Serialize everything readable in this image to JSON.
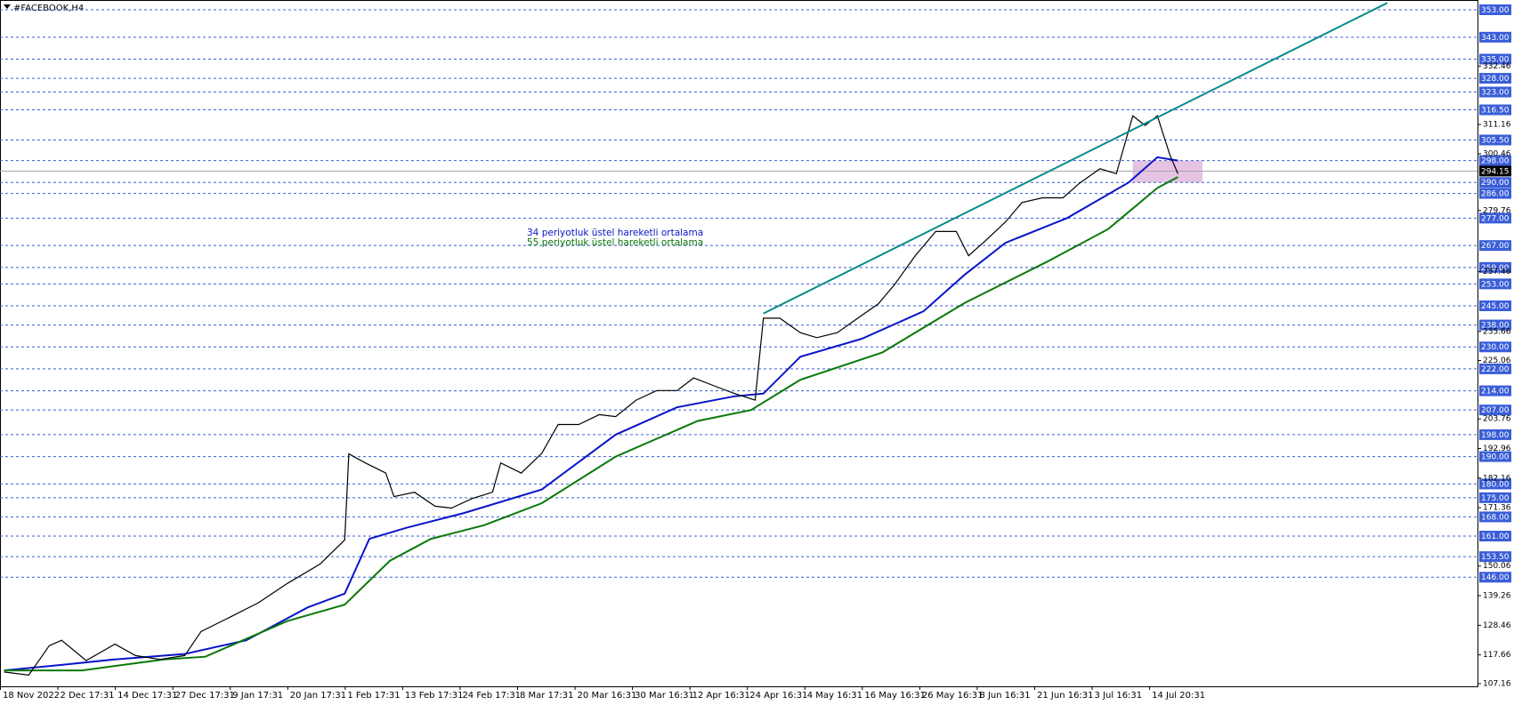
{
  "chart_data": {
    "type": "line",
    "title": "#FACEBOOK,H4",
    "xlim": [
      0,
      360
    ],
    "ylim": [
      107.16,
      353
    ],
    "xticks": [
      {
        "value": 0,
        "label": "18 Nov 2022"
      },
      {
        "value": 14,
        "label": "2 Dec 17:31"
      },
      {
        "value": 28,
        "label": "14 Dec 17:31"
      },
      {
        "value": 42,
        "label": "27 Dec 17:31"
      },
      {
        "value": 56,
        "label": "9 Jan 17:31"
      },
      {
        "value": 70,
        "label": "20 Jan 17:31"
      },
      {
        "value": 84,
        "label": "1 Feb 17:31"
      },
      {
        "value": 98,
        "label": "13 Feb 17:31"
      },
      {
        "value": 112,
        "label": "24 Feb 17:31"
      },
      {
        "value": 126,
        "label": "8 Mar 17:31"
      },
      {
        "value": 140,
        "label": "20 Mar 16:31"
      },
      {
        "value": 154,
        "label": "30 Mar 16:31"
      },
      {
        "value": 168,
        "label": "12 Apr 16:31"
      },
      {
        "value": 182,
        "label": "24 Apr 16:31"
      },
      {
        "value": 196,
        "label": "4 May 16:31"
      },
      {
        "value": 210,
        "label": "16 May 16:31"
      },
      {
        "value": 224,
        "label": "26 May 16:31"
      },
      {
        "value": 238,
        "label": "8 Jun 16:31"
      },
      {
        "value": 252,
        "label": "21 Jun 16:31"
      },
      {
        "value": 266,
        "label": "3 Jul 16:31"
      },
      {
        "value": 280,
        "label": "14 Jul 20:31"
      }
    ],
    "yticks": [
      {
        "value": 332.46,
        "label": "332.46"
      },
      {
        "value": 311.16,
        "label": "311.16"
      },
      {
        "value": 300.46,
        "label": "300.46"
      },
      {
        "value": 279.76,
        "label": "279.76"
      },
      {
        "value": 257.46,
        "label": "257.46"
      },
      {
        "value": 235.66,
        "label": "235.66"
      },
      {
        "value": 225.06,
        "label": "225.06"
      },
      {
        "value": 203.76,
        "label": "203.76"
      },
      {
        "value": 192.96,
        "label": "192.96"
      },
      {
        "value": 182.16,
        "label": "182.16"
      },
      {
        "value": 171.36,
        "label": "171.36"
      },
      {
        "value": 150.06,
        "label": "150.06"
      },
      {
        "value": 139.26,
        "label": "139.26"
      },
      {
        "value": 128.46,
        "label": "128.46"
      },
      {
        "value": 117.66,
        "label": "117.66"
      },
      {
        "value": 107.16,
        "label": "107.16"
      }
    ],
    "levels": [
      {
        "value": 353,
        "label": "353.00"
      },
      {
        "value": 343,
        "label": "343.00"
      },
      {
        "value": 335,
        "label": "335.00"
      },
      {
        "value": 328,
        "label": "328.00"
      },
      {
        "value": 323,
        "label": "323.00"
      },
      {
        "value": 316.5,
        "label": "316.50"
      },
      {
        "value": 305.5,
        "label": "305.50"
      },
      {
        "value": 298,
        "label": "298.00"
      },
      {
        "value": 290,
        "label": "290.00"
      },
      {
        "value": 286,
        "label": "286.00"
      },
      {
        "value": 277,
        "label": "277.00"
      },
      {
        "value": 267,
        "label": "267.00"
      },
      {
        "value": 259,
        "label": "259.00"
      },
      {
        "value": 253,
        "label": "253.00"
      },
      {
        "value": 245,
        "label": "245.00"
      },
      {
        "value": 238,
        "label": "238.00"
      },
      {
        "value": 230,
        "label": "230.00"
      },
      {
        "value": 222,
        "label": "222.00"
      },
      {
        "value": 214,
        "label": "214.00"
      },
      {
        "value": 207,
        "label": "207.00"
      },
      {
        "value": 198,
        "label": "198.00"
      },
      {
        "value": 190,
        "label": "190.00"
      },
      {
        "value": 180,
        "label": "180.00"
      },
      {
        "value": 175,
        "label": "175.00"
      },
      {
        "value": 168,
        "label": "168.00"
      },
      {
        "value": 161,
        "label": "161.00"
      },
      {
        "value": 153.5,
        "label": "153.50"
      },
      {
        "value": 146,
        "label": "146.00"
      }
    ],
    "current_price": {
      "value": 294.15,
      "label": "294.15"
    },
    "price": {
      "color": "#000000",
      "x": [
        1,
        7,
        12,
        15,
        21,
        28,
        33,
        39,
        45,
        49,
        56,
        63,
        70,
        78,
        84,
        85,
        89,
        94,
        96,
        101,
        106,
        110,
        115,
        120,
        122,
        127,
        132,
        136,
        141,
        146,
        150,
        155,
        160,
        165,
        169,
        174,
        179,
        184,
        186,
        190,
        195,
        199,
        204,
        209,
        214,
        218,
        223,
        228,
        233,
        236,
        240,
        245,
        249,
        254,
        259,
        263,
        268,
        272,
        276,
        279,
        282,
        285,
        287
      ],
      "values": [
        111.4,
        110.3,
        121,
        123,
        115.6,
        121.6,
        117.4,
        116,
        117.4,
        126.2,
        131.4,
        136.7,
        143.7,
        150.8,
        159.6,
        191,
        187.7,
        184,
        175.4,
        177,
        171.9,
        171.2,
        174.7,
        177,
        187.7,
        184,
        191.2,
        201.7,
        201.7,
        205.3,
        204.6,
        210.6,
        214.1,
        214.1,
        218.7,
        215.8,
        213,
        210.6,
        240.5,
        240.5,
        235.2,
        233.4,
        235.2,
        240.5,
        245.7,
        252.8,
        263.3,
        272.1,
        272.1,
        263.3,
        268.6,
        275.6,
        282.7,
        284.4,
        284.4,
        289.7,
        295,
        293.2,
        314.3,
        310.8,
        314.3,
        300.2,
        293.2
      ]
    },
    "series": [
      {
        "name": "34 periyotluk üstel hareketli ortalama",
        "color": "#0a14c8",
        "x": [
          1,
          15,
          28,
          45,
          60,
          75,
          84,
          90,
          99,
          113,
          132,
          150,
          165,
          179,
          186,
          195,
          210,
          225,
          235,
          245,
          260,
          275,
          282,
          287
        ],
        "values": [
          112,
          114,
          116,
          118,
          123,
          135,
          140,
          160,
          164,
          169.4,
          178,
          198,
          208,
          212,
          213,
          226.4,
          233,
          243,
          256.3,
          268,
          277,
          290,
          299.2,
          298
        ]
      },
      {
        "name": "55 periyotluk üstel hareketli ortalama",
        "color": "#087808",
        "x": [
          1,
          20,
          40,
          50,
          70,
          84,
          95,
          105,
          118,
          132,
          150,
          170,
          183,
          195,
          215,
          235,
          255,
          270,
          282,
          287
        ],
        "values": [
          112,
          112,
          116,
          117,
          130,
          136,
          152,
          160,
          165,
          173,
          190,
          203,
          207,
          218,
          228,
          246,
          261,
          273,
          288,
          292
        ]
      }
    ],
    "trendline": {
      "color": "#0a8c8c",
      "x": [
        186,
        338
      ],
      "values": [
        242.2,
        355.5
      ]
    },
    "zone": {
      "color": "#e0b4dc",
      "x": [
        276,
        293
      ],
      "values": [
        298,
        290
      ]
    }
  }
}
